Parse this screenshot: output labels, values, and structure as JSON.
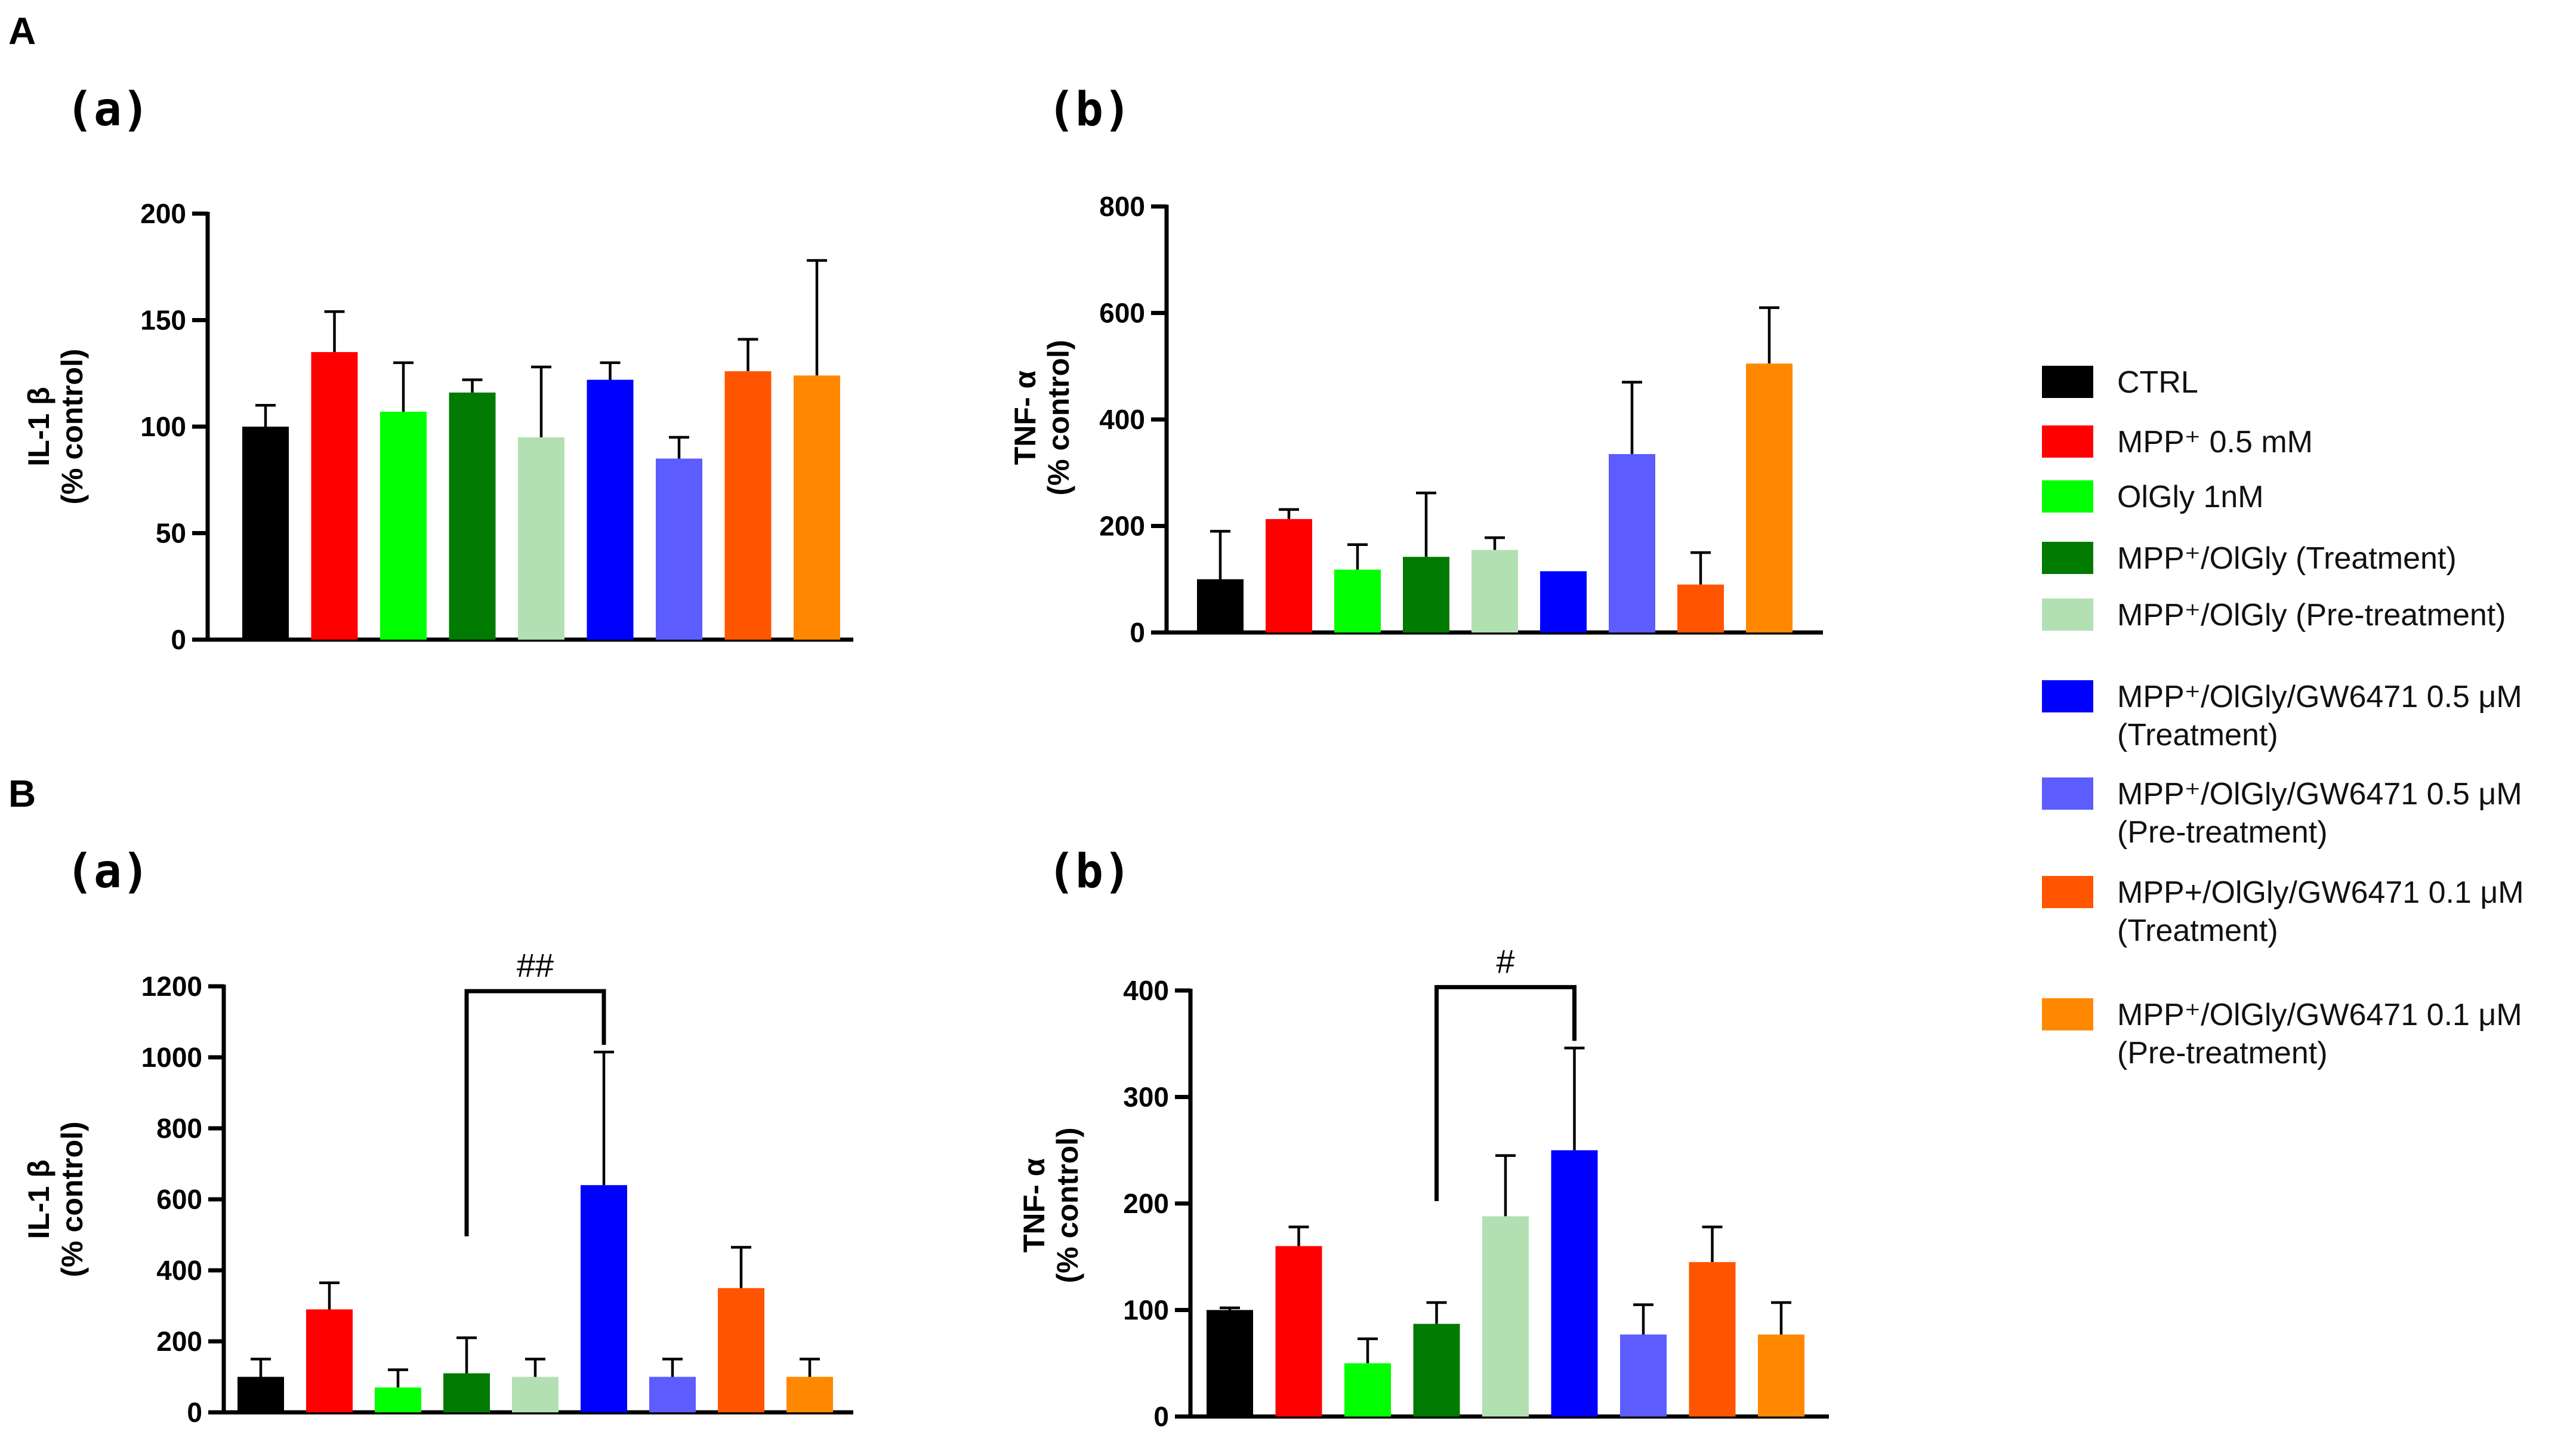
{
  "figure": {
    "section_labels": [
      "A",
      "B"
    ]
  },
  "legend": {
    "entries": [
      {
        "lines": [
          "CTRL"
        ],
        "color": "#000000"
      },
      {
        "lines": [
          "MPP⁺ 0.5 mM"
        ],
        "color": "#ff0000"
      },
      {
        "lines": [
          "OlGly 1nM"
        ],
        "color": "#00ff00"
      },
      {
        "lines": [
          "MPP⁺/OlGly (Treatment)"
        ],
        "color": "#007a00"
      },
      {
        "lines": [
          "MPP⁺/OlGly (Pre-treatment)"
        ],
        "color": "#b3e0b3"
      },
      {
        "lines": [
          "MPP⁺/OlGly/GW6471 0.5 μM",
          "(Treatment)"
        ],
        "color": "#0000ff"
      },
      {
        "lines": [
          "MPP⁺/OlGly/GW6471 0.5 μM",
          "(Pre-treatment)"
        ],
        "color": "#5c5cff"
      },
      {
        "lines": [
          "MPP+/OlGly/GW6471 0.1 μM",
          "(Treatment)"
        ],
        "color": "#ff5500"
      },
      {
        "lines": [
          "MPP⁺/OlGly/GW6471 0.1 μM",
          "(Pre-treatment)"
        ],
        "color": "#ff8800"
      }
    ]
  },
  "chart_data": [
    {
      "id": "A-a",
      "section": "A",
      "panel_label": "(a)",
      "type": "bar",
      "ylabel": [
        "IL-1 β",
        "(% control)"
      ],
      "ylim": [
        0,
        200
      ],
      "yticks": [
        0,
        50,
        100,
        150,
        200
      ],
      "values": [
        100,
        135,
        107,
        116,
        95,
        122,
        85,
        126,
        124
      ],
      "errors": [
        10,
        19,
        23,
        6,
        33,
        8,
        10,
        15,
        54
      ],
      "significance": null
    },
    {
      "id": "A-b",
      "section": "A",
      "panel_label": "(b)",
      "type": "bar",
      "ylabel": [
        "TNF- α",
        "(% control)"
      ],
      "ylim": [
        0,
        800
      ],
      "yticks": [
        0,
        200,
        400,
        600,
        800
      ],
      "values": [
        100,
        213,
        118,
        142,
        155,
        115,
        335,
        90,
        505
      ],
      "errors": [
        90,
        18,
        47,
        120,
        23,
        0,
        135,
        60,
        105
      ],
      "significance": null
    },
    {
      "id": "B-a",
      "section": "B",
      "panel_label": "(a)",
      "type": "bar",
      "ylabel": [
        "IL-1 β",
        "(% control)"
      ],
      "ylim": [
        0,
        1200
      ],
      "yticks": [
        0,
        200,
        400,
        600,
        800,
        1000,
        1200
      ],
      "values": [
        100,
        290,
        70,
        110,
        100,
        640,
        100,
        350,
        100
      ],
      "errors": [
        50,
        75,
        50,
        100,
        50,
        375,
        50,
        115,
        50
      ],
      "significance": {
        "from": 3,
        "to": 5,
        "label": "##"
      }
    },
    {
      "id": "B-b",
      "section": "B",
      "panel_label": "(b)",
      "type": "bar",
      "ylabel": [
        "TNF- α",
        "(% control)"
      ],
      "ylim": [
        0,
        400
      ],
      "yticks": [
        0,
        100,
        200,
        300,
        400
      ],
      "values": [
        100,
        160,
        50,
        87,
        188,
        250,
        77,
        145,
        77
      ],
      "errors": [
        2,
        18,
        23,
        20,
        57,
        96,
        28,
        33,
        30
      ],
      "significance": {
        "from": 3,
        "to": 5,
        "label": "#"
      }
    }
  ]
}
